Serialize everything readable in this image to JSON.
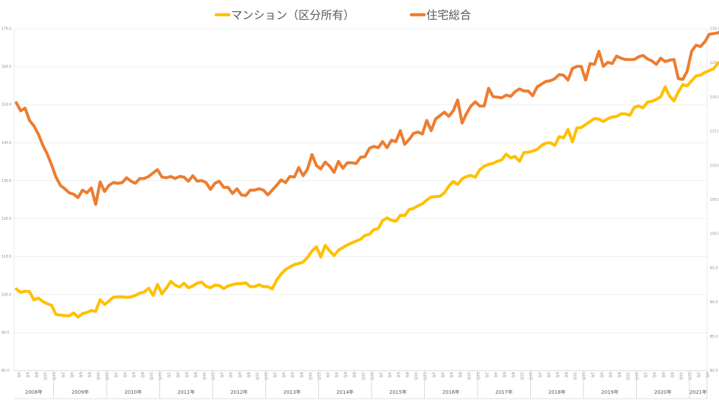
{
  "chart_data": {
    "type": "line",
    "legend": {
      "position": "top",
      "entries": [
        "マンション（区分所有）",
        "住宅総合"
      ]
    },
    "colors": {
      "マンション（区分所有）": "#FFC000",
      "住宅総合": "#ED7D31",
      "grid": "#e4e4e4"
    },
    "grid": true,
    "y_left": {
      "ylim": [
        80,
        170
      ],
      "ticks": [
        "80.0",
        "90.0",
        "100.0",
        "110.0",
        "120.0",
        "130.0",
        "140.0",
        "150.0",
        "160.0",
        "170.0"
      ]
    },
    "y_right": {
      "ylim": [
        80,
        130
      ],
      "ticks": [
        "80.0",
        "85.0",
        "90.0",
        "95.0",
        "100.0",
        "105.0",
        "110.0",
        "115.0",
        "120.0",
        "125.0",
        "130.0"
      ]
    },
    "x": {
      "start": "2008-04",
      "end": "2021-04",
      "month_label_suffix": "月",
      "month_labels_shown": [
        "2",
        "4",
        "6",
        "8",
        "10",
        "12"
      ],
      "year_labels": [
        "2008年",
        "2009年",
        "2010年",
        "2011年",
        "2012年",
        "2013年",
        "2014年",
        "2015年",
        "2016年",
        "2017年",
        "2018年",
        "2019年",
        "2020年",
        "2021年"
      ]
    },
    "series": [
      {
        "name": "マンション（区分所有）",
        "axis": "left",
        "values": [
          101.5,
          100.6,
          100.9,
          100.8,
          98.6,
          99.1,
          98.2,
          97.6,
          97.2,
          94.8,
          94.6,
          94.5,
          94.4,
          95.2,
          94.1,
          95.0,
          95.3,
          95.8,
          95.6,
          98.7,
          97.4,
          98.3,
          99.3,
          99.4,
          99.4,
          99.3,
          99.4,
          99.8,
          100.4,
          100.7,
          101.7,
          99.8,
          102.7,
          100.2,
          101.7,
          103.5,
          102.5,
          102.0,
          103.0,
          101.8,
          102.3,
          103.0,
          103.3,
          102.2,
          101.8,
          102.5,
          102.4,
          101.6,
          102.3,
          102.6,
          102.9,
          102.9,
          103.1,
          102.1,
          102.1,
          102.6,
          102.1,
          102.1,
          101.5,
          103.9,
          105.4,
          106.6,
          107.3,
          107.9,
          108.2,
          108.6,
          109.8,
          111.5,
          112.6,
          109.9,
          113.0,
          111.5,
          110.3,
          111.7,
          112.4,
          113.1,
          113.6,
          114.1,
          114.6,
          115.6,
          115.9,
          117.1,
          117.4,
          119.5,
          120.2,
          119.6,
          119.3,
          120.9,
          120.8,
          122.4,
          122.7,
          123.4,
          123.9,
          124.9,
          125.7,
          125.8,
          125.9,
          126.8,
          128.6,
          129.8,
          129.0,
          130.5,
          131.1,
          131.4,
          130.9,
          132.9,
          133.8,
          134.3,
          134.6,
          135.1,
          135.5,
          137.0,
          136.0,
          136.4,
          135.1,
          137.4,
          137.5,
          137.8,
          138.2,
          139.3,
          139.9,
          140.0,
          139.3,
          141.6,
          141.3,
          143.5,
          140.2,
          143.9,
          144.0,
          144.8,
          145.6,
          146.4,
          146.2,
          145.6,
          146.3,
          146.8,
          146.9,
          147.6,
          147.6,
          147.2,
          149.3,
          149.7,
          149.2,
          150.7,
          150.9,
          151.4,
          152.1,
          154.7,
          152.3,
          151.0,
          153.4,
          155.3,
          155.0,
          156.3,
          157.6,
          157.8,
          158.5,
          159.0,
          159.5,
          161.0
        ]
      },
      {
        "name": "住宅総合",
        "axis": "right",
        "values": [
          119.2,
          118.0,
          118.4,
          116.6,
          115.8,
          114.6,
          113.0,
          111.7,
          110.1,
          108.3,
          107.1,
          106.6,
          106.0,
          105.8,
          105.3,
          106.4,
          106.0,
          106.7,
          104.3,
          107.6,
          106.2,
          107.1,
          107.5,
          107.4,
          107.5,
          108.2,
          107.7,
          107.4,
          108.1,
          108.1,
          108.4,
          108.9,
          109.4,
          108.3,
          108.2,
          108.4,
          108.1,
          108.4,
          108.3,
          107.7,
          108.5,
          107.7,
          107.8,
          107.5,
          106.5,
          107.4,
          107.7,
          106.8,
          106.8,
          105.9,
          106.6,
          105.7,
          105.6,
          106.4,
          106.4,
          106.6,
          106.4,
          105.7,
          106.4,
          107.1,
          107.9,
          107.5,
          108.4,
          108.3,
          109.7,
          108.5,
          109.5,
          111.6,
          110.0,
          109.5,
          110.5,
          109.9,
          109.0,
          110.6,
          109.6,
          110.4,
          110.4,
          110.3,
          111.2,
          111.3,
          112.5,
          112.8,
          112.6,
          113.5,
          112.6,
          113.7,
          113.5,
          115.1,
          113.1,
          113.8,
          114.7,
          114.9,
          114.6,
          116.6,
          115.1,
          116.8,
          117.3,
          117.8,
          117.2,
          118.0,
          119.6,
          116.2,
          117.6,
          118.7,
          119.3,
          118.7,
          118.7,
          121.3,
          120.1,
          120.0,
          119.9,
          120.3,
          120.1,
          120.8,
          121.2,
          120.9,
          120.9,
          120.2,
          121.5,
          121.9,
          122.3,
          122.4,
          122.7,
          123.3,
          123.2,
          122.5,
          124.2,
          124.5,
          124.5,
          122.5,
          124.9,
          124.8,
          126.7,
          124.5,
          125.1,
          124.9,
          126.0,
          125.7,
          125.5,
          125.5,
          125.5,
          125.9,
          126.1,
          125.6,
          125.3,
          124.8,
          125.7,
          125.2,
          125.4,
          125.5,
          122.7,
          122.6,
          123.8,
          126.7,
          127.6,
          127.4,
          128.1,
          129.2,
          129.3,
          129.4,
          129.8,
          130.1
        ]
      }
    ]
  }
}
